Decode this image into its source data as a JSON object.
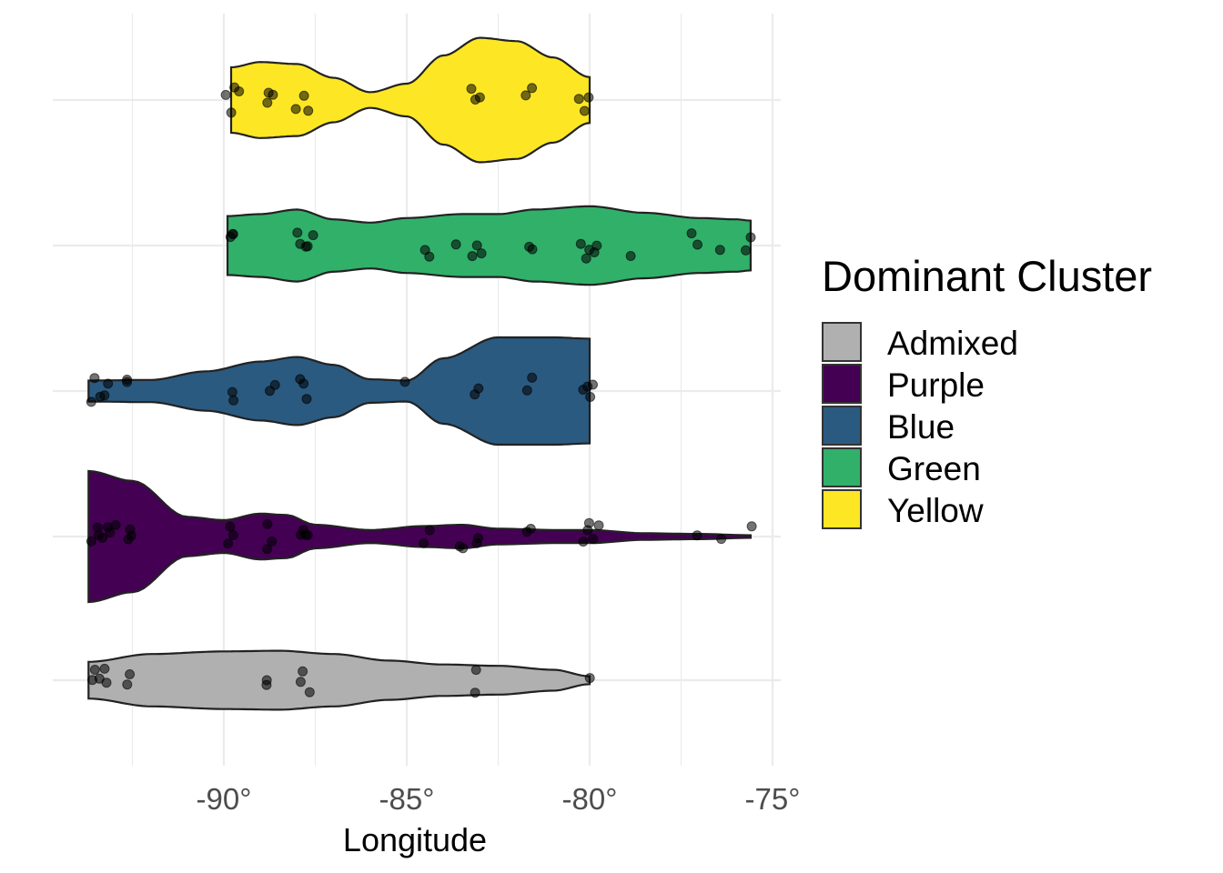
{
  "chart_data": {
    "type": "violin",
    "orientation": "horizontal",
    "xlabel": "Longitude",
    "ylabel": "",
    "xlim": [
      -94.0,
      -75.0
    ],
    "x_ticks": [
      {
        "value": -90,
        "label": "-90°"
      },
      {
        "value": -85,
        "label": "-85°"
      },
      {
        "value": -80,
        "label": "-80°"
      },
      {
        "value": -75,
        "label": "-75°"
      }
    ],
    "grid": true,
    "legend": {
      "title": "Dominant Cluster",
      "placement": "right",
      "entries": [
        {
          "label": "Admixed",
          "color": "#b0b0b0"
        },
        {
          "label": "Purple",
          "color": "#440154"
        },
        {
          "label": "Blue",
          "color": "#2b5a80"
        },
        {
          "label": "Green",
          "color": "#31b06a"
        },
        {
          "label": "Yellow",
          "color": "#fde725"
        }
      ]
    },
    "categories": [
      "Admixed",
      "Purple",
      "Blue",
      "Green",
      "Yellow"
    ],
    "series": [
      {
        "name": "Admixed",
        "color": "#b0b0b0",
        "range": [
          -93.7,
          -80.0
        ],
        "density": [
          [
            -93.7,
            0.28
          ],
          [
            -92.0,
            0.4
          ],
          [
            -90.0,
            0.44
          ],
          [
            -88.5,
            0.45
          ],
          [
            -87.0,
            0.4
          ],
          [
            -85.5,
            0.3
          ],
          [
            -84.0,
            0.24
          ],
          [
            -82.5,
            0.22
          ],
          [
            -81.0,
            0.16
          ],
          [
            -80.0,
            0.06
          ]
        ],
        "points": [
          -93.6,
          -93.5,
          -93.4,
          -93.3,
          -93.2,
          -92.6,
          -92.6,
          -88.8,
          -88.8,
          -87.9,
          -87.8,
          -87.7,
          -83.1,
          -83.1,
          -80.0
        ]
      },
      {
        "name": "Purple",
        "color": "#440154",
        "range": [
          -93.7,
          -75.6
        ],
        "density": [
          [
            -93.7,
            1.0
          ],
          [
            -92.5,
            0.85
          ],
          [
            -91.0,
            0.3
          ],
          [
            -90.0,
            0.25
          ],
          [
            -89.0,
            0.35
          ],
          [
            -88.3,
            0.33
          ],
          [
            -87.5,
            0.18
          ],
          [
            -86.0,
            0.1
          ],
          [
            -84.5,
            0.16
          ],
          [
            -83.5,
            0.18
          ],
          [
            -82.5,
            0.12
          ],
          [
            -81.0,
            0.1
          ],
          [
            -80.0,
            0.1
          ],
          [
            -78.5,
            0.05
          ],
          [
            -77.0,
            0.04
          ],
          [
            -75.6,
            0.02
          ]
        ],
        "points": [
          -93.6,
          -93.5,
          -93.4,
          -93.3,
          -93.2,
          -93.1,
          -93.0,
          -92.6,
          -92.5,
          -92.6,
          -89.9,
          -89.8,
          -89.7,
          -88.8,
          -88.7,
          -88.8,
          -87.9,
          -87.8,
          -87.7,
          -87.8,
          -84.5,
          -84.4,
          -83.6,
          -83.5,
          -83.1,
          -83.0,
          -81.7,
          -81.6,
          -80.2,
          -80.1,
          -80.0,
          -79.9,
          -79.8,
          -77.1,
          -76.4,
          -75.6
        ]
      },
      {
        "name": "Blue",
        "color": "#2b5a80",
        "range": [
          -93.7,
          -80.0
        ],
        "density": [
          [
            -93.7,
            0.16
          ],
          [
            -92.0,
            0.17
          ],
          [
            -90.5,
            0.3
          ],
          [
            -89.0,
            0.45
          ],
          [
            -88.0,
            0.52
          ],
          [
            -87.0,
            0.4
          ],
          [
            -86.0,
            0.18
          ],
          [
            -85.0,
            0.16
          ],
          [
            -84.0,
            0.5
          ],
          [
            -82.5,
            0.82
          ],
          [
            -81.0,
            0.82
          ],
          [
            -80.0,
            0.8
          ]
        ],
        "points": [
          -93.6,
          -93.5,
          -93.4,
          -93.3,
          -93.2,
          -92.6,
          -92.6,
          -89.8,
          -89.7,
          -88.7,
          -88.6,
          -87.9,
          -87.8,
          -87.7,
          -85.0,
          -83.1,
          -83.0,
          -81.7,
          -81.6,
          -80.2,
          -80.1,
          -80.0,
          -79.9
        ]
      },
      {
        "name": "Green",
        "color": "#31b06a",
        "range": [
          -89.9,
          -75.6
        ],
        "density": [
          [
            -89.9,
            0.45
          ],
          [
            -89.0,
            0.48
          ],
          [
            -88.0,
            0.55
          ],
          [
            -87.0,
            0.4
          ],
          [
            -86.0,
            0.35
          ],
          [
            -85.0,
            0.42
          ],
          [
            -83.5,
            0.48
          ],
          [
            -82.5,
            0.48
          ],
          [
            -81.5,
            0.55
          ],
          [
            -80.0,
            0.6
          ],
          [
            -78.5,
            0.5
          ],
          [
            -77.0,
            0.42
          ],
          [
            -76.0,
            0.4
          ],
          [
            -75.6,
            0.38
          ]
        ],
        "points": [
          -89.8,
          -89.7,
          -89.8,
          -88.0,
          -87.9,
          -87.8,
          -87.7,
          -87.6,
          -84.5,
          -84.4,
          -83.7,
          -83.2,
          -83.1,
          -83.0,
          -81.7,
          -81.6,
          -80.2,
          -80.1,
          -80.0,
          -79.9,
          -79.8,
          -78.9,
          -77.2,
          -77.1,
          -76.4,
          -75.7,
          -75.6
        ]
      },
      {
        "name": "Yellow",
        "color": "#fde725",
        "range": [
          -89.8,
          -80.0
        ],
        "density": [
          [
            -89.8,
            0.5
          ],
          [
            -89.0,
            0.58
          ],
          [
            -88.0,
            0.55
          ],
          [
            -87.0,
            0.34
          ],
          [
            -86.0,
            0.12
          ],
          [
            -85.0,
            0.25
          ],
          [
            -84.0,
            0.68
          ],
          [
            -83.0,
            0.95
          ],
          [
            -82.0,
            0.9
          ],
          [
            -81.0,
            0.65
          ],
          [
            -80.0,
            0.35
          ]
        ],
        "points": [
          -89.9,
          -89.8,
          -89.7,
          -89.6,
          -88.8,
          -88.7,
          -88.8,
          -88.0,
          -87.8,
          -87.7,
          -83.2,
          -83.1,
          -83.0,
          -81.7,
          -81.6,
          -80.3,
          -80.1,
          -80.0
        ]
      }
    ]
  }
}
